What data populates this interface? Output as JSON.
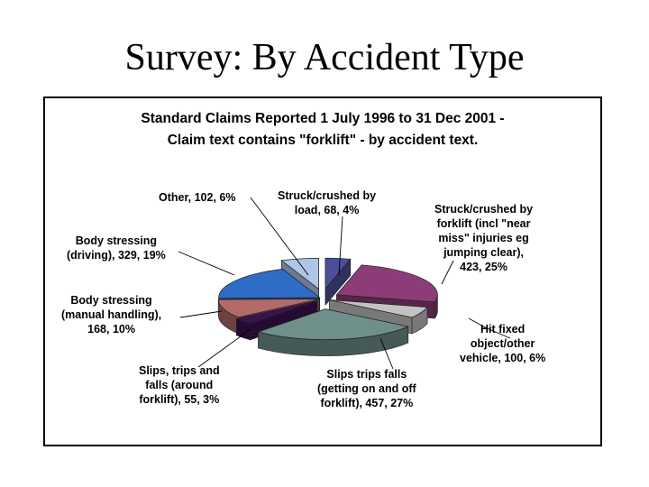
{
  "slide": {
    "title": "Survey: By Accident Type"
  },
  "chart_data": {
    "type": "pie",
    "title": "Standard Claims Reported 1 July 1996 to 31 Dec 2001 -",
    "subtitle": "Claim text contains \"forklift\" -  by accident text.",
    "slices": [
      {
        "label_lines": [
          "Struck/crushed by",
          "load, 68, 4%"
        ],
        "value": 68,
        "percent": 4,
        "color": "#4b4f9a"
      },
      {
        "label_lines": [
          "Struck/crushed by",
          "forklift (incl \"near",
          "miss\" injuries eg",
          "jumping clear),",
          "423, 25%"
        ],
        "value": 423,
        "percent": 25,
        "color": "#8e3c78"
      },
      {
        "label_lines": [
          "Hit fixed",
          "object/other",
          "vehicle, 100, 6%"
        ],
        "value": 100,
        "percent": 6,
        "color": "#c3c3c3"
      },
      {
        "label_lines": [
          "Slips trips falls",
          "(getting on and off",
          "forklift), 457, 27%"
        ],
        "value": 457,
        "percent": 27,
        "color": "#6f8f8a"
      },
      {
        "label_lines": [
          "Slips, trips and",
          "falls (around",
          "forklift), 55, 3%"
        ],
        "value": 55,
        "percent": 3,
        "color": "#3b1250"
      },
      {
        "label_lines": [
          "Body stressing",
          "(manual handling),",
          "168, 10%"
        ],
        "value": 168,
        "percent": 10,
        "color": "#b36a6a"
      },
      {
        "label_lines": [
          "Body stressing",
          "(driving), 329, 19%"
        ],
        "value": 329,
        "percent": 19,
        "color": "#2f6cc8"
      },
      {
        "label_lines": [
          "Other, 102, 6%"
        ],
        "value": 102,
        "percent": 6,
        "color": "#aec6e8"
      }
    ]
  }
}
